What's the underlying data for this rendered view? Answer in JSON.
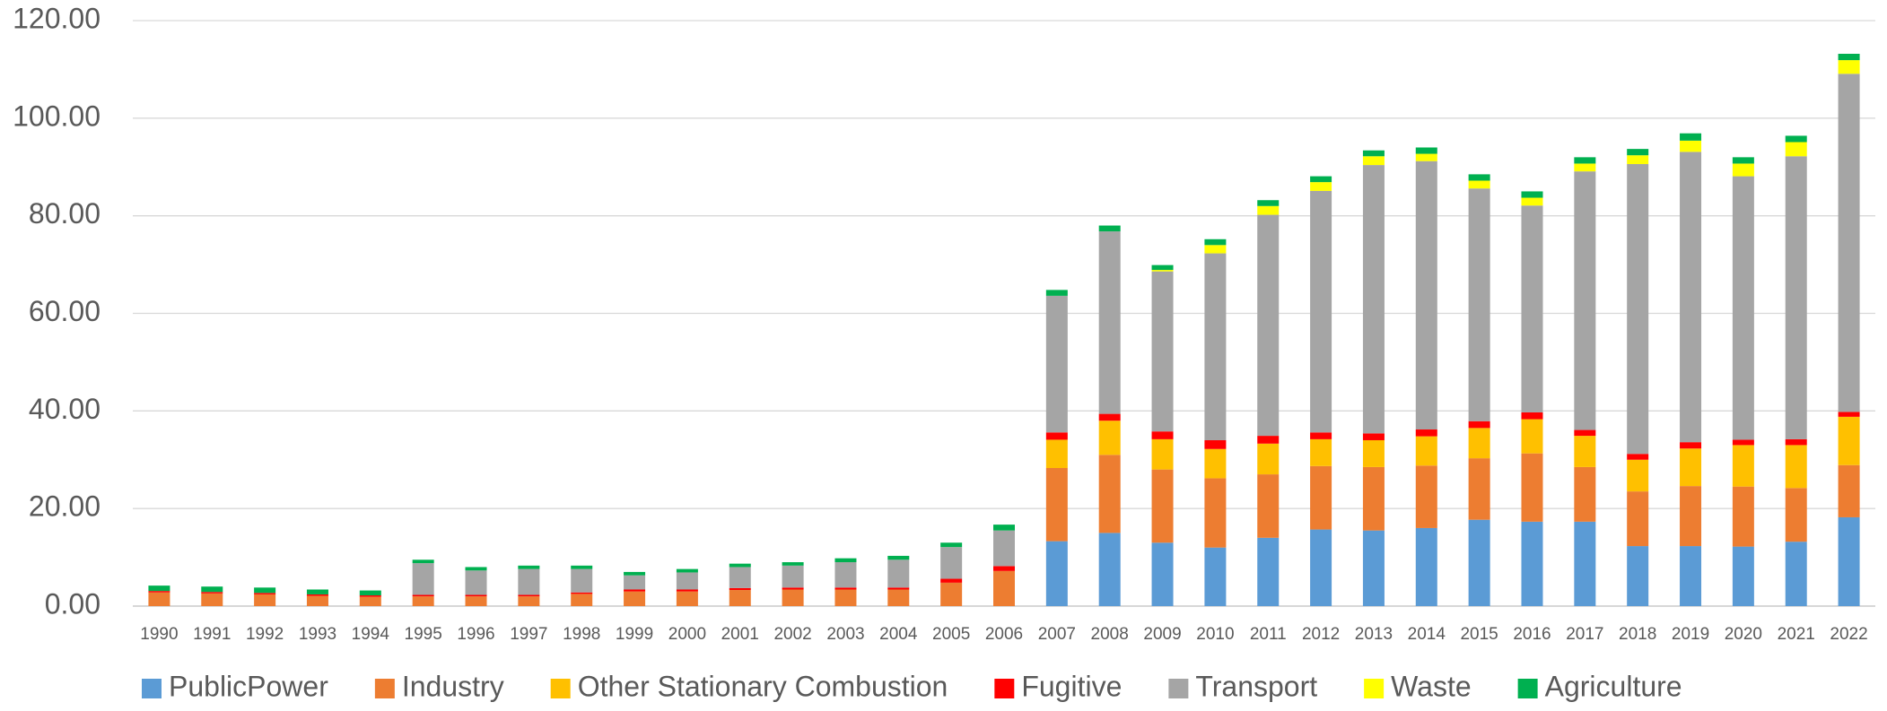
{
  "chart_data": {
    "type": "stacked_bar",
    "categories": [
      "1990",
      "1991",
      "1992",
      "1993",
      "1994",
      "1995",
      "1996",
      "1997",
      "1998",
      "1999",
      "2000",
      "2001",
      "2002",
      "2003",
      "2004",
      "2005",
      "2006",
      "2007",
      "2008",
      "2009",
      "2010",
      "2011",
      "2012",
      "2013",
      "2014",
      "2015",
      "2016",
      "2017",
      "2018",
      "2019",
      "2020",
      "2021",
      "2022"
    ],
    "series": [
      {
        "name": "PublicPower",
        "color": "#5b9bd5",
        "values": [
          0,
          0,
          0,
          0,
          0,
          0,
          0,
          0,
          0,
          0,
          0,
          0,
          0,
          0,
          0,
          0,
          0,
          13.3,
          15,
          13,
          12,
          14,
          15.7,
          15.5,
          16,
          17.7,
          17.3,
          17.3,
          12.3,
          12.3,
          12.2,
          13.2,
          18.2
        ]
      },
      {
        "name": "Industry",
        "color": "#ed7d31",
        "values": [
          2.8,
          2.6,
          2.4,
          2.1,
          1.9,
          2.0,
          2.0,
          2.0,
          2.5,
          3.0,
          3.0,
          3.3,
          3.4,
          3.4,
          3.4,
          4.8,
          7.2,
          15,
          16,
          15,
          14.2,
          13,
          13,
          13,
          12.8,
          12.6,
          14,
          11.2,
          11.2,
          12.3,
          12.3,
          11,
          10.7
        ]
      },
      {
        "name": "Other Stationary Combustion",
        "color": "#ffc000",
        "values": [
          0,
          0,
          0,
          0,
          0,
          0,
          0,
          0,
          0,
          0,
          0,
          0,
          0,
          0,
          0,
          0,
          0,
          5.8,
          7,
          6.2,
          6,
          6.3,
          5.5,
          5.5,
          6,
          6.2,
          7,
          6.4,
          6.5,
          7.7,
          8.5,
          8.8,
          9.9
        ]
      },
      {
        "name": "Fugitive",
        "color": "#ff0000",
        "values": [
          0.3,
          0.3,
          0.3,
          0.3,
          0.3,
          0.3,
          0.3,
          0.3,
          0.3,
          0.4,
          0.4,
          0.4,
          0.4,
          0.4,
          0.4,
          0.8,
          1.0,
          1.5,
          1.4,
          1.6,
          1.8,
          1.6,
          1.4,
          1.4,
          1.4,
          1.4,
          1.4,
          1.2,
          1.2,
          1.3,
          1.1,
          1.2,
          1.0
        ]
      },
      {
        "name": "Transport",
        "color": "#a5a5a5",
        "values": [
          0,
          0,
          0,
          0,
          0,
          6.5,
          5.0,
          5.3,
          4.8,
          2.9,
          3.5,
          4.3,
          4.5,
          5.2,
          5.7,
          6.5,
          7.3,
          28,
          37.4,
          32.8,
          38.3,
          45.3,
          49.5,
          55,
          55,
          47.7,
          42.4,
          53,
          59.4,
          59.5,
          54,
          58,
          69.3
        ]
      },
      {
        "name": "Waste",
        "color": "#ffff00",
        "values": [
          0,
          0,
          0,
          0,
          0,
          0,
          0,
          0,
          0,
          0,
          0,
          0,
          0,
          0,
          0,
          0,
          0,
          0,
          0,
          0.3,
          1.7,
          1.8,
          1.8,
          1.8,
          1.5,
          1.6,
          1.6,
          1.6,
          1.8,
          2.3,
          2.6,
          2.9,
          2.8
        ]
      },
      {
        "name": "Agriculture",
        "color": "#00b050",
        "values": [
          1.1,
          1.1,
          1.1,
          1.0,
          1.0,
          0.7,
          0.7,
          0.7,
          0.7,
          0.7,
          0.7,
          0.7,
          0.7,
          0.8,
          0.8,
          0.9,
          1.2,
          1.2,
          1.2,
          1.0,
          1.2,
          1.2,
          1.2,
          1.2,
          1.3,
          1.3,
          1.3,
          1.3,
          1.3,
          1.5,
          1.3,
          1.3,
          1.3
        ]
      }
    ],
    "ylim": [
      0,
      120
    ],
    "yticks": [
      {
        "value": 0,
        "label": "0.00"
      },
      {
        "value": 20,
        "label": "20.00"
      },
      {
        "value": 40,
        "label": "40.00"
      },
      {
        "value": 60,
        "label": "60.00"
      },
      {
        "value": 80,
        "label": "80.00"
      },
      {
        "value": 100,
        "label": "100.00"
      },
      {
        "value": 120,
        "label": "120.00"
      }
    ],
    "grid": true,
    "legend": "bottom"
  }
}
